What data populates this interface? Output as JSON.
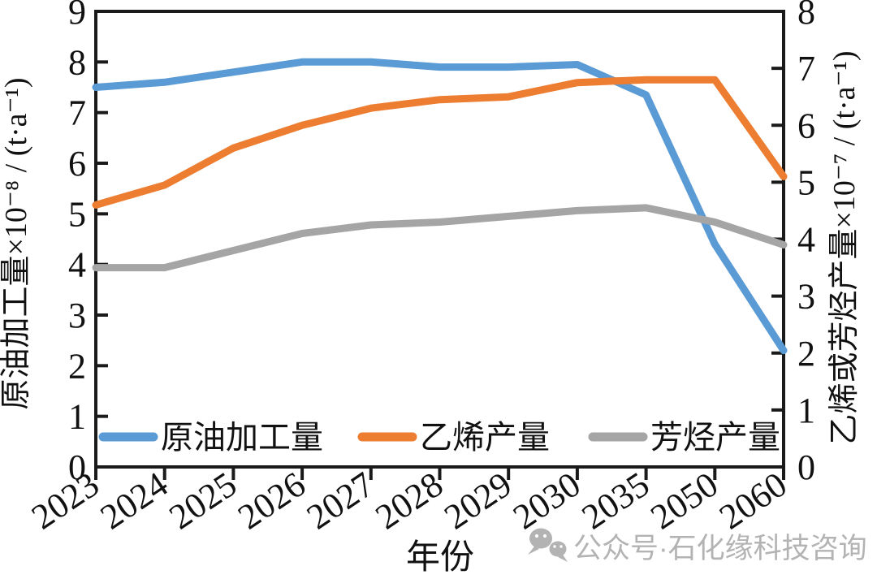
{
  "chart_data": {
    "type": "line",
    "title": "",
    "categories": [
      "2023",
      "2024",
      "2025",
      "2026",
      "2027",
      "2028",
      "2029",
      "2030",
      "2035",
      "2050",
      "2060"
    ],
    "series": [
      {
        "name": "原油加工量",
        "axis": "left",
        "color": "#5B9BD5",
        "values": [
          7.5,
          7.6,
          7.8,
          8.0,
          8.0,
          7.9,
          7.9,
          7.95,
          7.35,
          4.4,
          2.3
        ]
      },
      {
        "name": "乙烯产量",
        "axis": "right",
        "color": "#ED7D31",
        "values": [
          4.6,
          4.95,
          5.6,
          6.0,
          6.3,
          6.45,
          6.5,
          6.75,
          6.8,
          6.8,
          5.1
        ]
      },
      {
        "name": "芳烃产量",
        "axis": "right",
        "color": "#A5A5A5",
        "values": [
          3.5,
          3.5,
          3.8,
          4.1,
          4.25,
          4.3,
          4.4,
          4.5,
          4.55,
          4.3,
          3.9
        ]
      }
    ],
    "x_axis": {
      "label": "年份",
      "tick_labels": [
        "2023",
        "2024",
        "2025",
        "2026",
        "2027",
        "2028",
        "2029",
        "2030",
        "2035",
        "2050",
        "2060"
      ]
    },
    "left_axis": {
      "label": "原油加工量×10⁻⁸ / (t·a⁻¹)",
      "min": 0,
      "max": 9,
      "tick_step": 1,
      "tick_labels": [
        "0",
        "1",
        "2",
        "3",
        "4",
        "5",
        "6",
        "7",
        "8",
        "9"
      ]
    },
    "right_axis": {
      "label": "乙烯或芳烃产量×10⁻⁷ / (t·a⁻¹)",
      "min": 0,
      "max": 8,
      "tick_step": 1,
      "tick_labels": [
        "0",
        "1",
        "2",
        "3",
        "4",
        "5",
        "6",
        "7",
        "8"
      ]
    },
    "legend": {
      "position": "bottom-inside",
      "entries": [
        "原油加工量",
        "乙烯产量",
        "芳烃产量"
      ]
    },
    "grid": false,
    "axis_color": "#1a1a1a"
  },
  "watermark": {
    "icon": "wechat-icon",
    "text": "公众号·石化缘科技咨询",
    "color": "#b3b3b3"
  }
}
